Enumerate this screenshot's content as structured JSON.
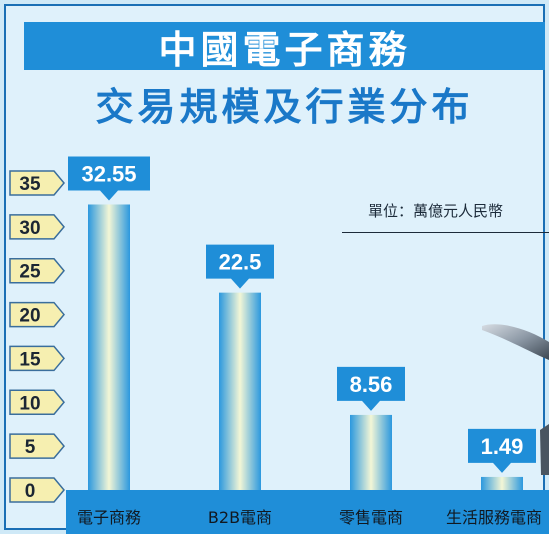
{
  "header": {
    "title": "中國電子商務",
    "subtitle": "交易規模及行業分布"
  },
  "unit_label": "單位：萬億元人民幣",
  "colors": {
    "title_band": "#1f8ed8",
    "subtitle": "#1a78c8",
    "background": "#dff1fb",
    "label_box": "#1f8ed8",
    "category_band": "#1f8ed8",
    "tick_tag": "#f6efb0"
  },
  "chart_data": {
    "type": "bar",
    "categories": [
      "電子商務",
      "B2B電商",
      "零售電商",
      "生活服務電商"
    ],
    "values": [
      32.55,
      22.5,
      8.56,
      1.49
    ],
    "value_labels": [
      "32.55",
      "22.5",
      "8.56",
      "1.49"
    ],
    "ylim": [
      0,
      35
    ],
    "yticks": [
      0,
      5,
      10,
      15,
      20,
      25,
      30,
      35
    ],
    "legend": "none",
    "grid": false
  }
}
